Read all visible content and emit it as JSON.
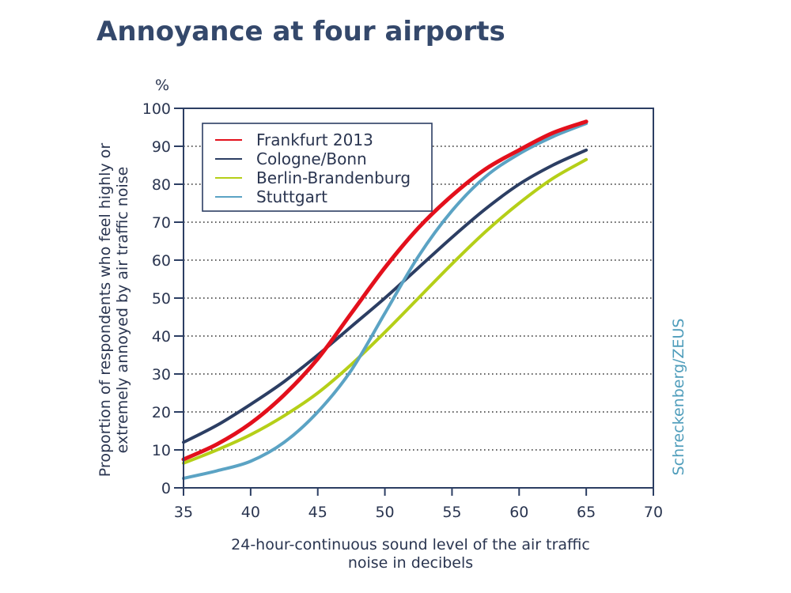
{
  "title": "Annoyance at four airports",
  "source_credit": "Schreckenberg/ZEUS",
  "chart_data": {
    "type": "line",
    "title": "Annoyance at four airports",
    "xlabel": "24-hour-continuous sound level of the air traffic noise in decibels",
    "xlabel_lines": [
      "24-hour-continuous sound level of the air traffic",
      "noise in decibels"
    ],
    "ylabel": "Proportion of respondents who feel highly or extremely annoyed by air traffic noise",
    "ylabel_lines": [
      "Proportion of respondents who feel highly or",
      "extremely annoyed by air traffic noise"
    ],
    "y_unit": "%",
    "xlim": [
      35,
      70
    ],
    "ylim": [
      0,
      100
    ],
    "x_ticks": [
      35,
      40,
      45,
      50,
      55,
      60,
      65,
      70
    ],
    "y_ticks": [
      0,
      10,
      20,
      30,
      40,
      50,
      60,
      70,
      80,
      90,
      100
    ],
    "grid": "horizontal dotted",
    "legend_position": "top-left",
    "x": [
      35,
      37.5,
      40,
      42.5,
      45,
      47.5,
      50,
      52.5,
      55,
      57.5,
      60,
      62.5,
      65
    ],
    "series": [
      {
        "name": "Frankfurt 2013",
        "color": "#e3101c",
        "values": [
          7.5,
          11.5,
          17,
          24.5,
          34,
          46,
          58,
          68.5,
          77,
          84,
          89,
          93.5,
          96.5
        ]
      },
      {
        "name": "Cologne/Bonn",
        "color": "#2c3e63",
        "values": [
          12,
          16.5,
          22,
          28,
          35,
          42.5,
          50,
          58,
          66,
          73.5,
          80,
          85,
          89
        ]
      },
      {
        "name": "Berlin-Brandenburg",
        "color": "#b5cf18",
        "values": [
          6.5,
          10,
          14,
          19,
          25,
          32.5,
          41,
          50,
          59,
          67.5,
          75,
          81.5,
          86.5
        ]
      },
      {
        "name": "Stuttgart",
        "color": "#5ba3c4",
        "values": [
          2.5,
          4.5,
          7,
          12,
          20,
          31,
          46,
          61,
          73,
          82,
          88,
          92.5,
          96
        ]
      }
    ]
  }
}
